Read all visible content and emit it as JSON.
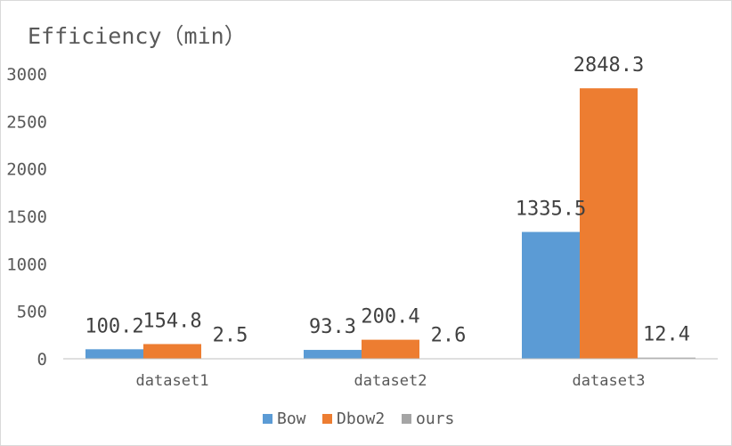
{
  "colors": {
    "bow": "#5B9BD5",
    "dbow2": "#ED7D31",
    "ours": "#A5A5A5",
    "axis": "#bfbfbf",
    "text": "#595959"
  },
  "chart_data": {
    "type": "bar",
    "title": "Efficiency（min）",
    "categories": [
      "dataset1",
      "dataset2",
      "dataset3"
    ],
    "series": [
      {
        "name": "Bow",
        "values": [
          100.2,
          93.3,
          1335.5
        ],
        "labels": [
          "100.2",
          "93.3",
          "1335.5"
        ]
      },
      {
        "name": "Dbow2",
        "values": [
          154.8,
          200.4,
          2848.3
        ],
        "labels": [
          "154.8",
          "200.4",
          "2848.3"
        ]
      },
      {
        "name": "ours",
        "values": [
          2.5,
          2.6,
          12.4
        ],
        "labels": [
          "2.5",
          "2.6",
          "12.4"
        ]
      }
    ],
    "yticks": [
      "0",
      "500",
      "1000",
      "1500",
      "2000",
      "2500",
      "3000"
    ],
    "ylim": [
      0,
      3000
    ],
    "grid": false,
    "legend_position": "bottom"
  }
}
